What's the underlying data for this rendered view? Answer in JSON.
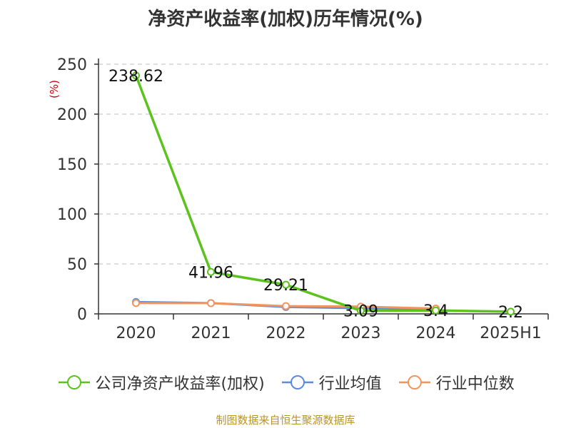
{
  "title": "净资产收益率(加权)历年情况(%)",
  "source_note": "制图数据来自恒生聚源数据库",
  "chart_data": {
    "type": "line",
    "title": "净资产收益率(加权)历年情况(%)",
    "ylabel": "(%)",
    "xlabel": "",
    "categories": [
      "2020",
      "2021",
      "2022",
      "2023",
      "2024",
      "2025H1"
    ],
    "ylim": [
      0,
      250
    ],
    "yticks": [
      0,
      50,
      100,
      150,
      200,
      250
    ],
    "grid": true,
    "legend_position": "bottom",
    "series": [
      {
        "name": "公司净资产收益率(加权)",
        "color": "#5cc21e",
        "values": [
          238.62,
          41.96,
          29.21,
          3.09,
          3.4,
          2.2
        ],
        "labels": [
          "238.62",
          "41.96",
          "29.21",
          "3.09",
          "3.4",
          "2.2"
        ]
      },
      {
        "name": "行业均值",
        "color": "#5b8bd9",
        "values": [
          11.9,
          10.8,
          6.9,
          5.7,
          4.8,
          null
        ]
      },
      {
        "name": "行业中位数",
        "color": "#f0955f",
        "values": [
          10.8,
          10.7,
          7.8,
          7.3,
          5.4,
          null
        ]
      }
    ]
  }
}
